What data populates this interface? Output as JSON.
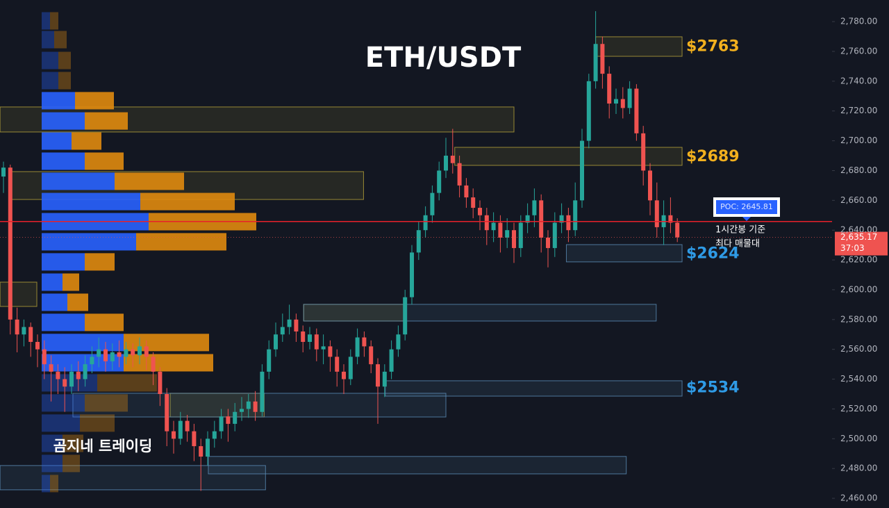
{
  "chart_data": {
    "type": "candlestick",
    "title": "ETH/USDT",
    "watermark": "곰지네 트레이딩",
    "ylim": [
      2453.5,
      2794.5
    ],
    "yticks": [
      {
        "value": 2460,
        "label": "2,460.00"
      },
      {
        "value": 2480,
        "label": "2,480.00"
      },
      {
        "value": 2500,
        "label": "2,500.00"
      },
      {
        "value": 2520,
        "label": "2,520.00"
      },
      {
        "value": 2540,
        "label": "2,540.00"
      },
      {
        "value": 2560,
        "label": "2,560.00"
      },
      {
        "value": 2580,
        "label": "2,580.00"
      },
      {
        "value": 2600,
        "label": "2,600.00"
      },
      {
        "value": 2620,
        "label": "2,620.00"
      },
      {
        "value": 2640,
        "label": "2,640.00"
      },
      {
        "value": 2660,
        "label": "2,660.00"
      },
      {
        "value": 2680,
        "label": "2,680.00"
      },
      {
        "value": 2700,
        "label": "2,700.00"
      },
      {
        "value": 2720,
        "label": "2,720.00"
      },
      {
        "value": 2740,
        "label": "2,740.00"
      },
      {
        "value": 2760,
        "label": "2,760.00"
      },
      {
        "value": 2780,
        "label": "2,780.00"
      }
    ],
    "up_color": "#26a69a",
    "down_color": "#ef5350",
    "open": [
      2676,
      2682,
      2580,
      2570,
      2575,
      2565,
      2560,
      2550,
      2545,
      2540,
      2535,
      2545,
      2540,
      2550,
      2555,
      2560,
      2552,
      2558,
      2555,
      2560,
      2556,
      2562,
      2555,
      2545,
      2530,
      2505,
      2500,
      2512,
      2505,
      2495,
      2488,
      2500,
      2505,
      2515,
      2510,
      2518,
      2520,
      2525,
      2518,
      2545,
      2560,
      2570,
      2575,
      2580,
      2572,
      2565,
      2570,
      2560,
      2562,
      2555,
      2545,
      2540,
      2555,
      2568,
      2562,
      2550,
      2535,
      2545,
      2560,
      2570,
      2595,
      2625,
      2640,
      2650,
      2665,
      2680,
      2690,
      2685,
      2670,
      2662,
      2655,
      2650,
      2640,
      2645,
      2635,
      2640,
      2628,
      2645,
      2650,
      2660,
      2635,
      2628,
      2645,
      2650,
      2640,
      2660,
      2700,
      2740,
      2765,
      2745,
      2725,
      2728,
      2722,
      2735,
      2705,
      2680,
      2660,
      2642,
      2650,
      2645
    ],
    "high": [
      2686,
      2684,
      2588,
      2580,
      2578,
      2570,
      2566,
      2556,
      2550,
      2548,
      2550,
      2552,
      2556,
      2562,
      2568,
      2565,
      2564,
      2566,
      2565,
      2564,
      2568,
      2566,
      2558,
      2548,
      2534,
      2512,
      2518,
      2516,
      2510,
      2500,
      2505,
      2512,
      2520,
      2520,
      2524,
      2528,
      2530,
      2532,
      2550,
      2566,
      2578,
      2584,
      2590,
      2584,
      2576,
      2575,
      2574,
      2570,
      2566,
      2560,
      2550,
      2560,
      2574,
      2572,
      2566,
      2554,
      2550,
      2566,
      2576,
      2600,
      2630,
      2646,
      2656,
      2670,
      2686,
      2702,
      2708,
      2690,
      2675,
      2668,
      2660,
      2655,
      2652,
      2650,
      2648,
      2645,
      2650,
      2658,
      2668,
      2664,
      2640,
      2652,
      2658,
      2655,
      2672,
      2708,
      2745,
      2787,
      2770,
      2750,
      2735,
      2736,
      2740,
      2738,
      2710,
      2685,
      2672,
      2660,
      2662,
      2648
    ],
    "low": [
      2665,
      2570,
      2558,
      2562,
      2555,
      2548,
      2540,
      2525,
      2530,
      2518,
      2530,
      2532,
      2535,
      2544,
      2548,
      2545,
      2546,
      2548,
      2550,
      2548,
      2550,
      2546,
      2536,
      2522,
      2495,
      2490,
      2496,
      2498,
      2485,
      2465,
      2482,
      2494,
      2500,
      2498,
      2505,
      2512,
      2514,
      2512,
      2515,
      2540,
      2555,
      2565,
      2570,
      2565,
      2558,
      2560,
      2552,
      2550,
      2545,
      2535,
      2530,
      2536,
      2550,
      2555,
      2544,
      2510,
      2528,
      2540,
      2555,
      2566,
      2590,
      2620,
      2635,
      2645,
      2660,
      2675,
      2678,
      2662,
      2655,
      2648,
      2640,
      2630,
      2632,
      2625,
      2628,
      2618,
      2622,
      2638,
      2642,
      2625,
      2615,
      2622,
      2638,
      2632,
      2636,
      2655,
      2695,
      2735,
      2735,
      2715,
      2718,
      2715,
      2718,
      2700,
      2670,
      2650,
      2635,
      2630,
      2638,
      2632
    ],
    "close": [
      2682,
      2580,
      2570,
      2575,
      2565,
      2560,
      2550,
      2545,
      2540,
      2535,
      2545,
      2540,
      2550,
      2555,
      2560,
      2552,
      2558,
      2555,
      2560,
      2556,
      2562,
      2555,
      2545,
      2530,
      2505,
      2500,
      2512,
      2505,
      2495,
      2488,
      2500,
      2505,
      2515,
      2510,
      2518,
      2520,
      2525,
      2518,
      2545,
      2560,
      2570,
      2575,
      2580,
      2572,
      2565,
      2570,
      2560,
      2562,
      2555,
      2545,
      2540,
      2555,
      2568,
      2562,
      2550,
      2535,
      2545,
      2560,
      2570,
      2595,
      2625,
      2640,
      2650,
      2665,
      2680,
      2690,
      2685,
      2670,
      2662,
      2655,
      2650,
      2640,
      2645,
      2635,
      2640,
      2628,
      2645,
      2650,
      2660,
      2635,
      2628,
      2645,
      2650,
      2640,
      2660,
      2700,
      2740,
      2765,
      2745,
      2725,
      2728,
      2722,
      2735,
      2705,
      2680,
      2660,
      2642,
      2650,
      2645,
      2635.17
    ],
    "volume_profile": {
      "prices": [
        2780.5,
        2767.9,
        2753.9,
        2740.4,
        2726.9,
        2713.3,
        2699.8,
        2686.3,
        2672.8,
        2659.2,
        2645.7,
        2632.2,
        2618.7,
        2605.1,
        2591.6,
        2578.1,
        2564.6,
        2551.0,
        2537.5,
        2524.0,
        2510.5,
        2496.9,
        2483.4,
        2469.9
      ],
      "buy": [
        12,
        18,
        24,
        24,
        48,
        62,
        43,
        62,
        105,
        142,
        154,
        136,
        62,
        30,
        37,
        62,
        118,
        118,
        80,
        62,
        55,
        30,
        30,
        12
      ],
      "sell": [
        12,
        18,
        18,
        18,
        56,
        62,
        43,
        56,
        100,
        136,
        155,
        130,
        43,
        24,
        30,
        56,
        123,
        129,
        86,
        62,
        50,
        30,
        25,
        12
      ],
      "buy_color": "#2962ff",
      "sell_color": "#e08a0e",
      "value_area": [
        2544,
        2734
      ]
    },
    "zones": [
      {
        "low": 2705.9,
        "high": 2722.7,
        "from": -0.5,
        "to": 75,
        "color": "#b8a43a"
      },
      {
        "low": 2660.6,
        "high": 2679.3,
        "from": 1,
        "to": 52.9,
        "color": "#b8a43a"
      },
      {
        "low": 2756.7,
        "high": 2769.8,
        "from": 87,
        "to": 99.7,
        "color": "#b8a43a"
      },
      {
        "low": 2683.5,
        "high": 2695.6,
        "from": 66.3,
        "to": 99.7,
        "color": "#b8a43a"
      },
      {
        "low": 2579.0,
        "high": 2590.2,
        "from": 44.1,
        "to": 59.2,
        "color": "#b8a43a"
      },
      {
        "low": 2514.6,
        "high": 2530.5,
        "from": 24.5,
        "to": 38.3,
        "color": "#b8a43a"
      },
      {
        "low": 2588.8,
        "high": 2605.1,
        "from": -0.5,
        "to": 4.9,
        "color": "#b8a43a"
      },
      {
        "low": 2618.7,
        "high": 2630.3,
        "from": 82.7,
        "to": 99.7,
        "color": "#5b8db8"
      },
      {
        "low": 2579.0,
        "high": 2590.2,
        "from": 44.1,
        "to": 95.9,
        "color": "#5b8db8"
      },
      {
        "low": 2528.6,
        "high": 2538.9,
        "from": 56.1,
        "to": 99.7,
        "color": "#5b8db8"
      },
      {
        "low": 2514.6,
        "high": 2530.5,
        "from": 10.2,
        "to": 65,
        "color": "#5b8db8"
      },
      {
        "low": 2476.4,
        "high": 2488.1,
        "from": 30.1,
        "to": 91.5,
        "color": "#5b8db8"
      },
      {
        "low": 2465.7,
        "high": 2482.0,
        "from": -0.5,
        "to": 38.5,
        "color": "#5b8db8"
      }
    ],
    "price_labels": [
      {
        "label": "$2763",
        "value": 2763,
        "color": "#f2b01e"
      },
      {
        "label": "$2689",
        "value": 2689,
        "color": "#f2b01e"
      },
      {
        "label": "$2624",
        "value": 2624,
        "color": "#2f9be6"
      },
      {
        "label": "$2534",
        "value": 2534,
        "color": "#2f9be6"
      }
    ],
    "poc": {
      "label": "POC: 2645.81",
      "value": 2645.81,
      "color": "#e8202a",
      "note": [
        "1시간봉 기준",
        "최다 매물대"
      ]
    },
    "last_price": {
      "value": 2635.17,
      "label": "2,635.17",
      "countdown": "37:03",
      "color": "#ef5350"
    }
  }
}
